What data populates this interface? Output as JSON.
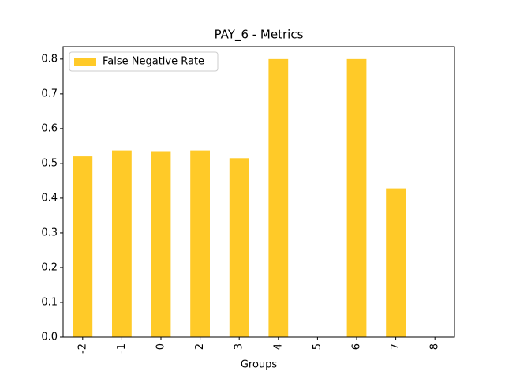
{
  "chart_data": {
    "type": "bar",
    "title": "PAY_6 - Metrics",
    "x_label": "Groups",
    "categories": [
      "-2",
      "-1",
      "0",
      "2",
      "3",
      "4",
      "5",
      "6",
      "7",
      "8"
    ],
    "series": [
      {
        "name": "False Negative Rate",
        "color": "#ffca28",
        "values": [
          0.52,
          0.537,
          0.535,
          0.537,
          0.515,
          0.8,
          0,
          0.8,
          0.428,
          0
        ]
      }
    ],
    "ylim": [
      0,
      0.836
    ],
    "yticks": [
      {
        "value": 0,
        "label": "0.0"
      },
      0.1,
      0.2,
      0.3,
      0.4,
      0.5,
      0.6,
      0.7,
      0.8
    ],
    "legend": "upper left"
  }
}
